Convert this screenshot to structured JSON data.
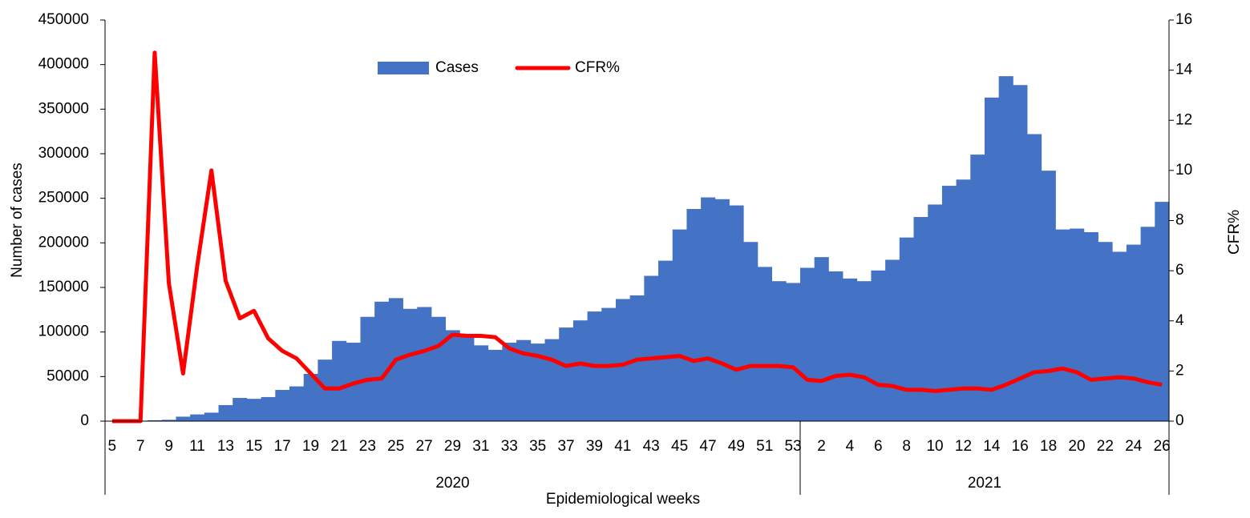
{
  "chart_data": {
    "type": "bar-line",
    "x_label": "Epidemiological weeks",
    "y_label": "Number of cases",
    "y2_label": "CFR%",
    "categories": [
      "5",
      null,
      "7",
      null,
      "9",
      null,
      "11",
      null,
      "13",
      null,
      "15",
      null,
      "17",
      null,
      "19",
      null,
      "21",
      null,
      "23",
      null,
      "25",
      null,
      "27",
      null,
      "29",
      null,
      "31",
      null,
      "33",
      null,
      "35",
      null,
      "37",
      null,
      "39",
      null,
      "41",
      null,
      "43",
      null,
      "45",
      null,
      "47",
      null,
      "49",
      null,
      "51",
      null,
      "53",
      null,
      "2",
      null,
      "4",
      null,
      "6",
      null,
      "8",
      null,
      "10",
      null,
      "12",
      null,
      "14",
      null,
      "16",
      null,
      "18",
      null,
      "20",
      null,
      "22",
      null,
      "24",
      null,
      "26"
    ],
    "groups": [
      {
        "label": "2020",
        "size": 49
      },
      {
        "label": "2021",
        "size": 26
      }
    ],
    "series": [
      {
        "name": "Cases",
        "type": "bar",
        "color": "#4472c4",
        "values": [
          0,
          0,
          500,
          1000,
          1500,
          5000,
          7500,
          9500,
          18000,
          26000,
          25000,
          27000,
          35000,
          39000,
          53000,
          69000,
          90000,
          88000,
          117000,
          134000,
          138000,
          126000,
          128000,
          117000,
          102000,
          97000,
          85000,
          80000,
          88000,
          91000,
          87000,
          92000,
          105000,
          113000,
          123000,
          127000,
          137000,
          141000,
          163000,
          180000,
          215000,
          238000,
          251000,
          249000,
          242000,
          201000,
          173000,
          157000,
          155000,
          172000,
          184000,
          168000,
          160000,
          157000,
          169000,
          181000,
          206000,
          229000,
          243000,
          264000,
          271000,
          299000,
          363000,
          387000,
          377000,
          322000,
          281000,
          215000,
          216000,
          212000,
          201000,
          190000,
          198000,
          218000,
          246000
        ]
      },
      {
        "name": "CFR%",
        "type": "line",
        "axis": "y2",
        "color": "#ff0000",
        "values": [
          0,
          0,
          0,
          14.7,
          5.5,
          1.9,
          6.2,
          10,
          5.6,
          4.1,
          4.4,
          3.3,
          2.8,
          2.5,
          1.9,
          1.3,
          1.3,
          1.5,
          1.65,
          1.7,
          2.45,
          2.65,
          2.8,
          3.0,
          3.45,
          3.4,
          3.4,
          3.35,
          2.9,
          2.7,
          2.6,
          2.45,
          2.2,
          2.3,
          2.2,
          2.2,
          2.25,
          2.45,
          2.5,
          2.55,
          2.6,
          2.4,
          2.5,
          2.3,
          2.05,
          2.2,
          2.2,
          2.2,
          2.15,
          1.65,
          1.6,
          1.8,
          1.85,
          1.75,
          1.45,
          1.4,
          1.25,
          1.25,
          1.2,
          1.25,
          1.3,
          1.3,
          1.25,
          1.45,
          1.7,
          1.95,
          2.0,
          2.1,
          1.95,
          1.65,
          1.7,
          1.75,
          1.7,
          1.55,
          1.45
        ]
      }
    ],
    "ylim": [
      0,
      450000
    ],
    "yticks": [
      0,
      50000,
      100000,
      150000,
      200000,
      250000,
      300000,
      350000,
      400000,
      450000
    ],
    "y2lim": [
      0,
      16
    ],
    "y2ticks": [
      0,
      2,
      4,
      6,
      8,
      10,
      12,
      14,
      16
    ],
    "grid": false,
    "legend": "top"
  }
}
